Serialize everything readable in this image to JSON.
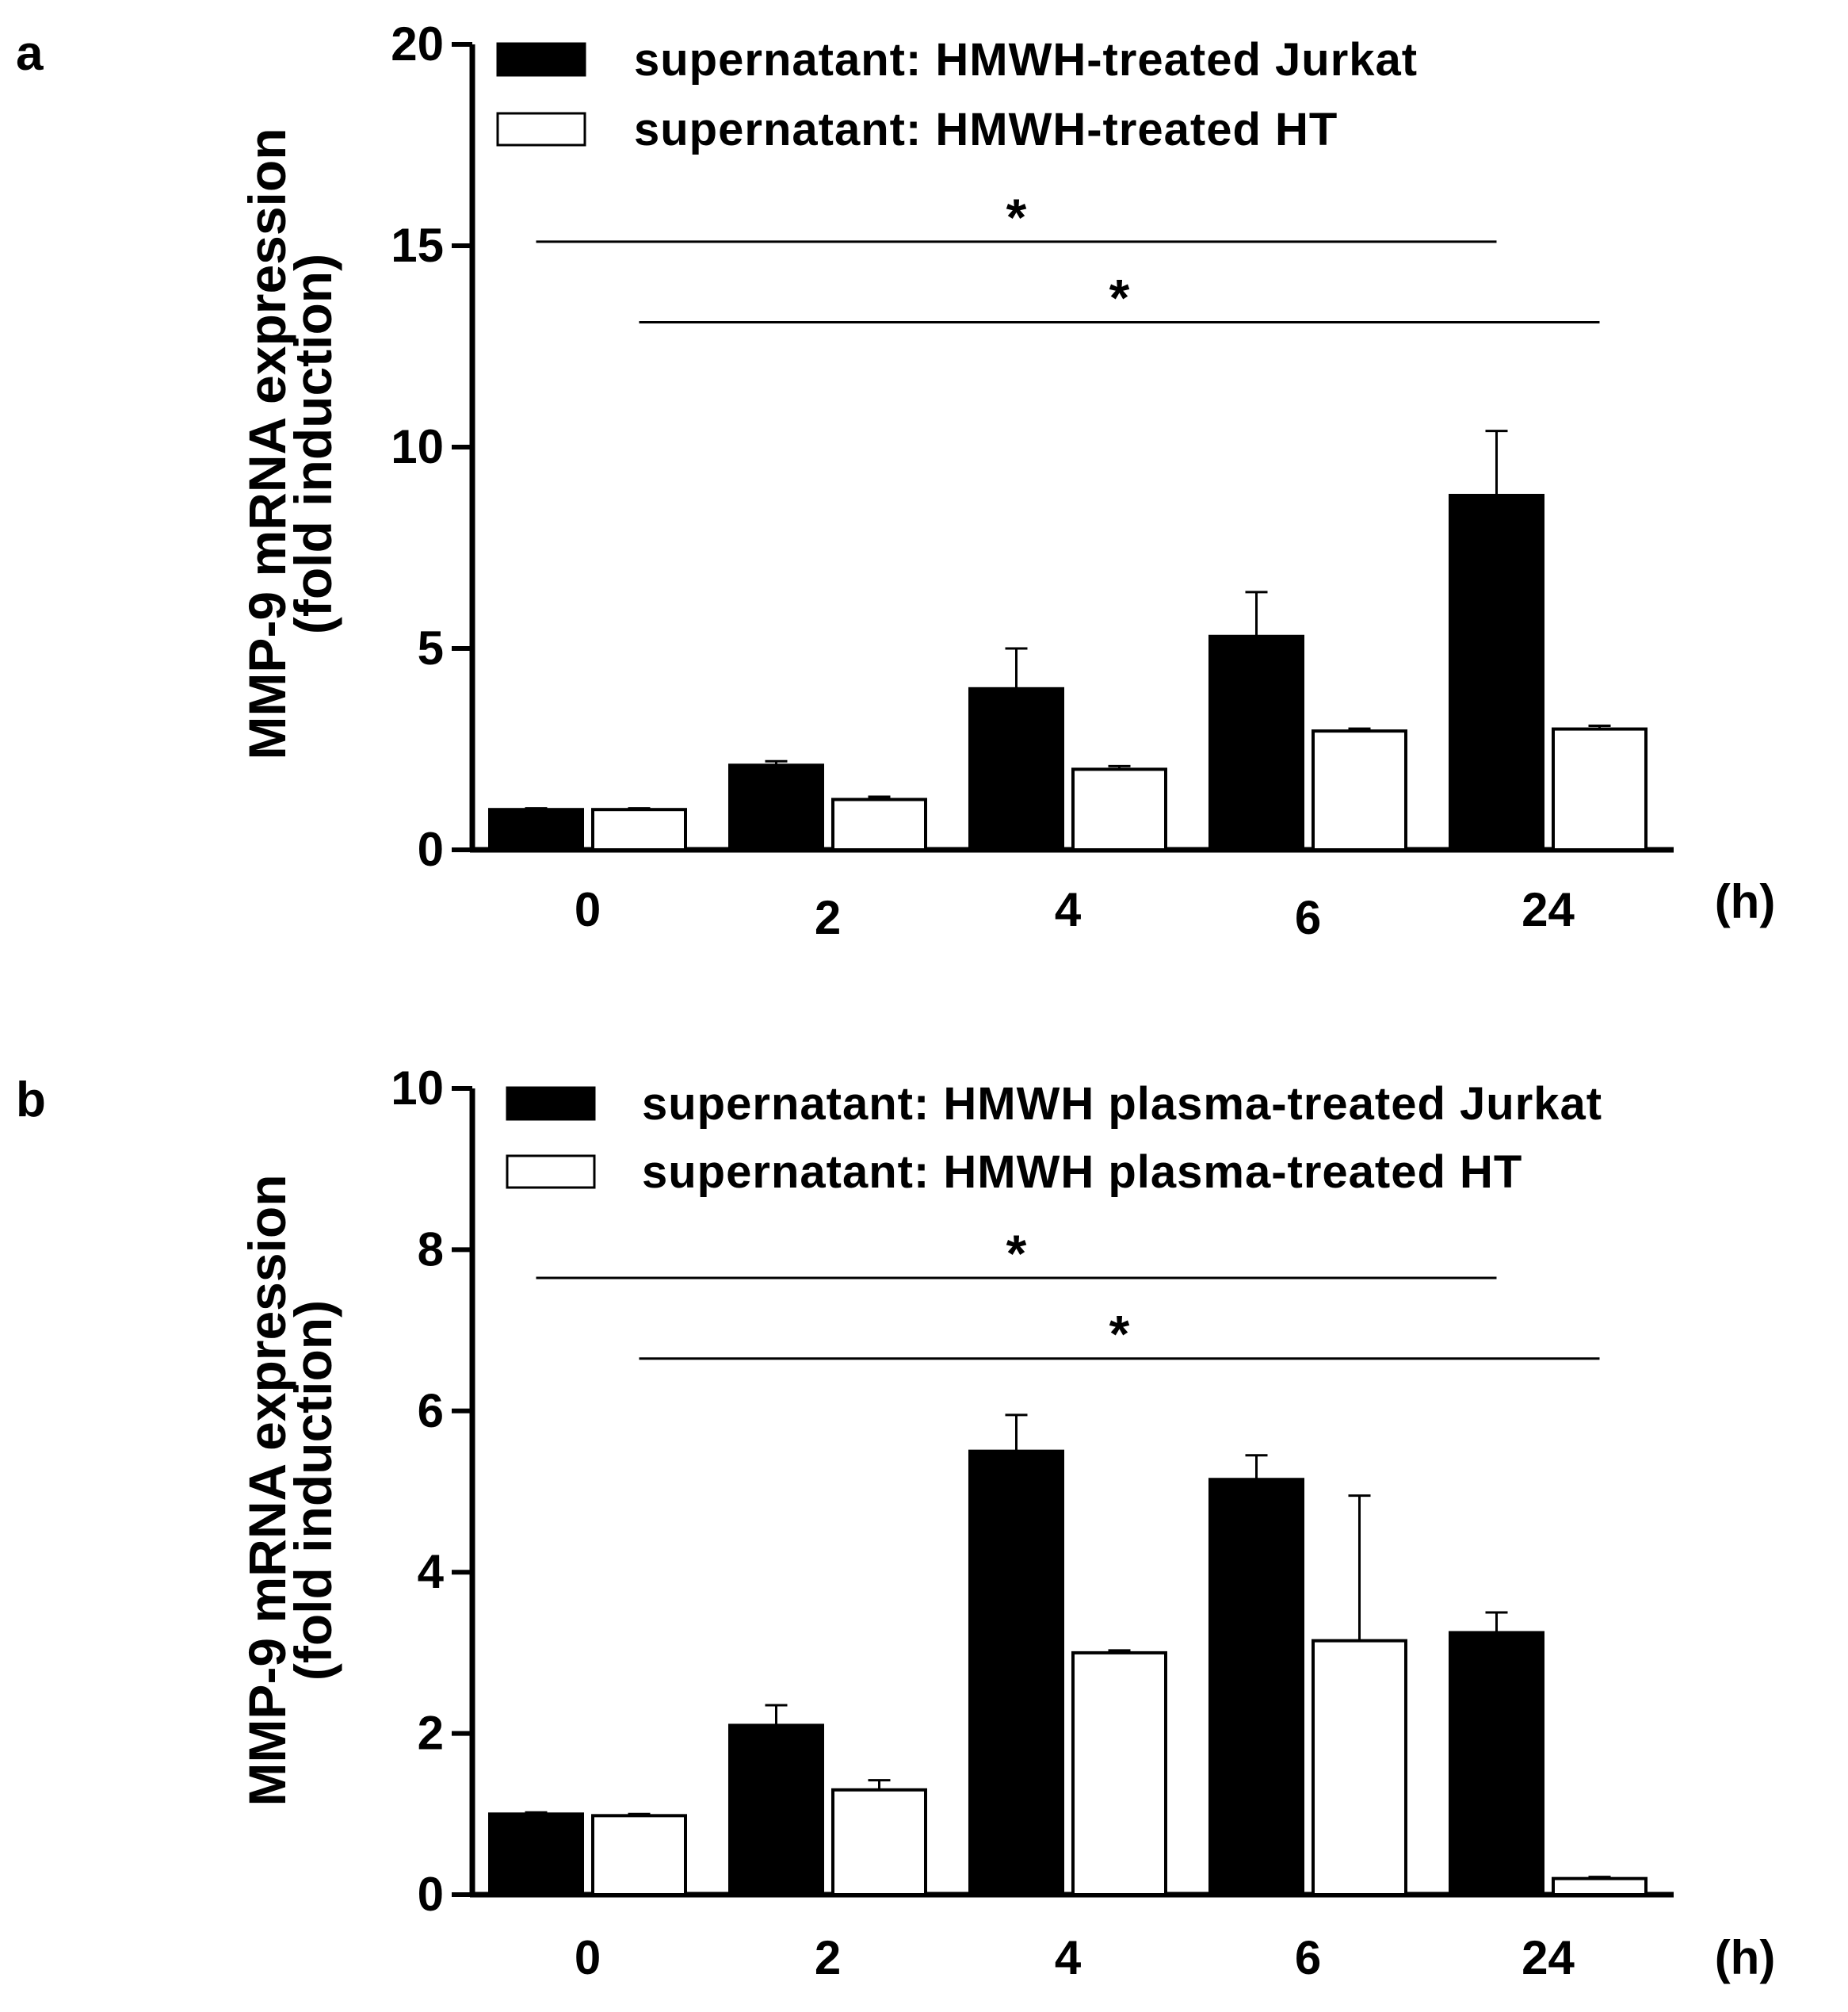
{
  "chart_data": [
    {
      "panel": "a",
      "type": "bar",
      "title": "",
      "xlabel": "",
      "ylabel": [
        "MMP-9 mRNA expression",
        "(fold induction)"
      ],
      "x_unit": "(h)",
      "categories": [
        "0",
        "2",
        "4",
        "6",
        "24"
      ],
      "ylim": [
        0,
        20
      ],
      "yticks": [
        0,
        5,
        10,
        15,
        20
      ],
      "grid": false,
      "legend_position": "top",
      "series": [
        {
          "name": "supernatant: HMWH-treated Jurkat",
          "fill": "#000000",
          "values": [
            1.0,
            2.1,
            4.0,
            5.3,
            8.8
          ],
          "errors": [
            0.03,
            0.1,
            1.0,
            1.1,
            1.6
          ]
        },
        {
          "name": "supernatant: HMWH-treated HT",
          "fill": "#ffffff",
          "values": [
            1.0,
            1.25,
            2.0,
            2.95,
            3.0
          ],
          "errors": [
            0.03,
            0.07,
            0.08,
            0.06,
            0.08
          ]
        }
      ],
      "significance": [
        {
          "label": "*",
          "from": {
            "category": "0",
            "series": 0
          },
          "to": {
            "category": "24",
            "series": 0
          },
          "y": 15.1
        },
        {
          "label": "*",
          "from": {
            "category": "0",
            "series": 1
          },
          "to": {
            "category": "24",
            "series": 1
          },
          "y": 13.1
        }
      ]
    },
    {
      "panel": "b",
      "type": "bar",
      "title": "",
      "xlabel": "",
      "ylabel": [
        "MMP-9 mRNA expression",
        "(fold induction)"
      ],
      "x_unit": "(h)",
      "categories": [
        "0",
        "2",
        "4",
        "6",
        "24"
      ],
      "ylim": [
        0,
        10
      ],
      "yticks": [
        0,
        2,
        4,
        6,
        8,
        10
      ],
      "grid": false,
      "legend_position": "top",
      "series": [
        {
          "name": "supernatant: HMWH plasma-treated Jurkat",
          "fill": "#000000",
          "values": [
            1.0,
            2.1,
            5.5,
            5.15,
            3.25
          ],
          "errors": [
            0.02,
            0.25,
            0.45,
            0.3,
            0.25
          ]
        },
        {
          "name": "supernatant: HMWH plasma-treated HT",
          "fill": "#ffffff",
          "values": [
            0.98,
            1.3,
            3.0,
            3.15,
            0.2
          ],
          "errors": [
            0.02,
            0.12,
            0.03,
            1.8,
            0.02
          ]
        }
      ],
      "significance": [
        {
          "label": "*",
          "from": {
            "category": "0",
            "series": 0
          },
          "to": {
            "category": "24",
            "series": 0
          },
          "y": 7.65
        },
        {
          "label": "*",
          "from": {
            "category": "0",
            "series": 1
          },
          "to": {
            "category": "24",
            "series": 1
          },
          "y": 6.65
        }
      ]
    }
  ]
}
